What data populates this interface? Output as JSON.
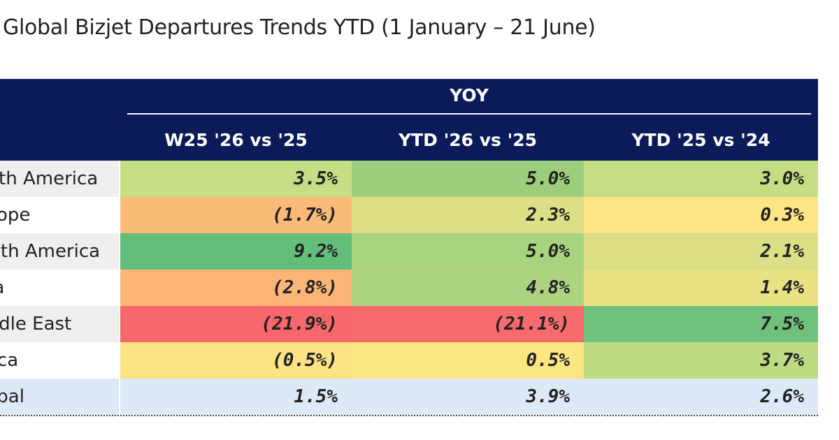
{
  "chart_data": {
    "type": "table",
    "title": "Global Bizjet Departures Trends YTD (1 January – 21 June)",
    "group_header": "YOY",
    "columns": [
      "W25 '26 vs '25",
      "YTD '26 vs '25",
      "YTD '25 vs '24"
    ],
    "rows": [
      {
        "label": "North America",
        "values": [
          "3.5%",
          "5.0%",
          "3.0%"
        ],
        "colors": [
          "#c5dd83",
          "#9ccf7c",
          "#c5dd83"
        ]
      },
      {
        "label": "Europe",
        "values": [
          "(1.7%)",
          "2.3%",
          "0.3%"
        ],
        "colors": [
          "#fbbb78",
          "#dcdf85",
          "#fde484"
        ]
      },
      {
        "label": "South America",
        "values": [
          "9.2%",
          "5.0%",
          "2.1%"
        ],
        "colors": [
          "#63be7b",
          "#a9d47f",
          "#dcdf85"
        ]
      },
      {
        "label": "Asia",
        "values": [
          "(2.8%)",
          "4.8%",
          "1.4%"
        ],
        "colors": [
          "#fbb677",
          "#acd480",
          "#ebe283"
        ]
      },
      {
        "label": "Middle East",
        "values": [
          "(21.9%)",
          "(21.1%)",
          "7.5%"
        ],
        "colors": [
          "#f8676c",
          "#f86b6d",
          "#70c17c"
        ]
      },
      {
        "label": "Africa",
        "values": [
          "(0.5%)",
          "0.5%",
          "3.7%"
        ],
        "colors": [
          "#fde383",
          "#fbe682",
          "#bfdb81"
        ]
      },
      {
        "label": "Global",
        "values": [
          "1.5%",
          "3.9%",
          "2.6%"
        ],
        "colors": [
          "#dde9f6",
          "#dde9f6",
          "#dde9f6"
        ]
      }
    ],
    "header_color": "#0b1b5a",
    "total_row_color": "#dde9f6"
  }
}
